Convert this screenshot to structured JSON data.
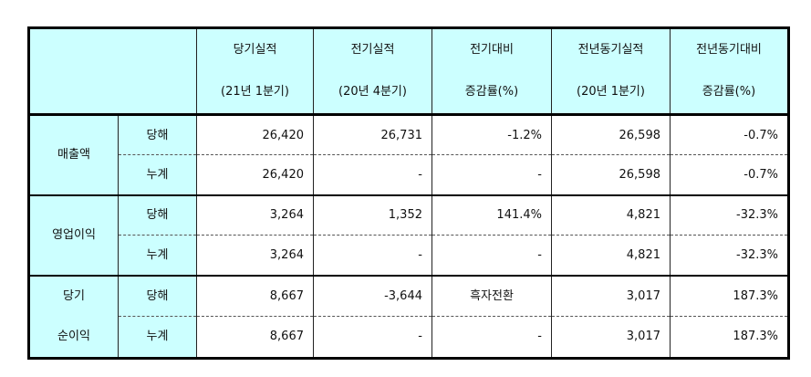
{
  "header": {
    "columns": [
      {
        "line1": "당기실적",
        "line2": "(21년 1분기)"
      },
      {
        "line1": "전기실적",
        "line2": "(20년 4분기)"
      },
      {
        "line1": "전기대비",
        "line2": "증감률(%)"
      },
      {
        "line1": "전년동기실적",
        "line2": "(20년 1분기)"
      },
      {
        "line1": "전년동기대비",
        "line2": "증감률(%)"
      }
    ]
  },
  "groups": [
    {
      "label_lines": [
        "매출액"
      ],
      "rows": [
        {
          "sub": "당해",
          "values": [
            "26,420",
            "26,731",
            "-1.2%",
            "26,598",
            "-0.7%"
          ]
        },
        {
          "sub": "누계",
          "values": [
            "26,420",
            "-",
            "-",
            "26,598",
            "-0.7%"
          ]
        }
      ]
    },
    {
      "label_lines": [
        "영업이익"
      ],
      "rows": [
        {
          "sub": "당해",
          "values": [
            "3,264",
            "1,352",
            "141.4%",
            "4,821",
            "-32.3%"
          ]
        },
        {
          "sub": "누계",
          "values": [
            "3,264",
            "-",
            "-",
            "4,821",
            "-32.3%"
          ]
        }
      ]
    },
    {
      "label_lines": [
        "당기",
        "순이익"
      ],
      "rows": [
        {
          "sub": "당해",
          "values": [
            "8,667",
            "-3,644",
            "흑자전환",
            "3,017",
            "187.3%"
          ]
        },
        {
          "sub": "누계",
          "values": [
            "8,667",
            "-",
            "-",
            "3,017",
            "187.3%"
          ]
        }
      ]
    }
  ]
}
